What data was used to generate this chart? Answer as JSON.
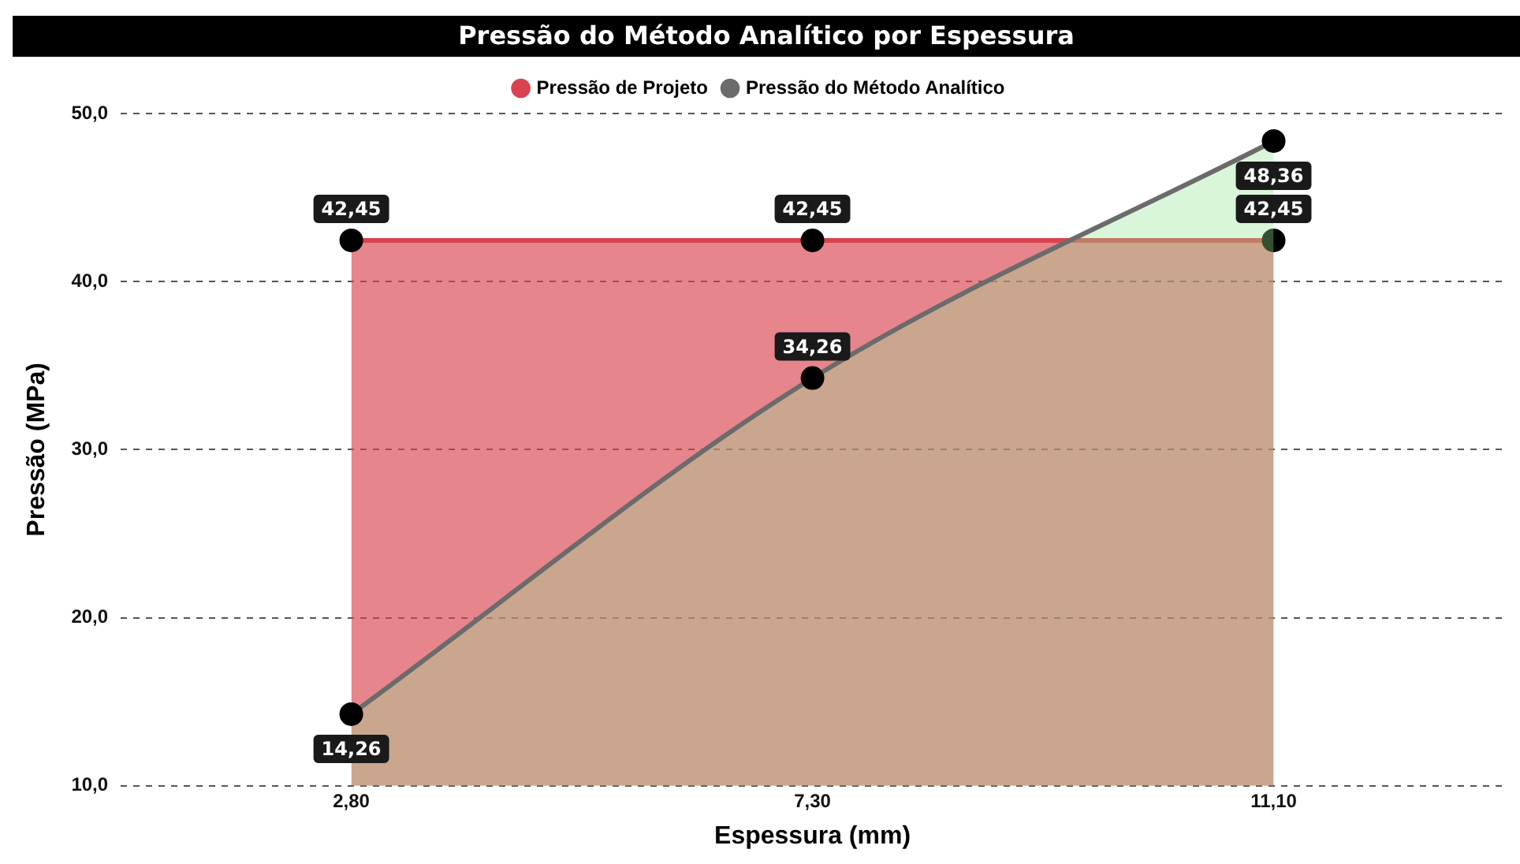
{
  "chart_data": {
    "type": "area",
    "title": "Pressão do Método Analítico por Espessura",
    "xlabel": "Espessura (mm)",
    "ylabel": "Pressão (MPa)",
    "categories": [
      "2,80",
      "7,30",
      "11,10"
    ],
    "series": [
      {
        "name": "Pressão de Projeto",
        "color": "#d9434f",
        "values": [
          42.45,
          42.45,
          42.45
        ],
        "value_labels": [
          "42,45",
          "42,45",
          "42,45"
        ]
      },
      {
        "name": "Pressão do Método Analítico",
        "color": "#6b6b6b",
        "values": [
          14.26,
          34.26,
          48.36
        ],
        "value_labels": [
          "14,26",
          "34,26",
          "48,36"
        ]
      }
    ],
    "ylim": [
      10,
      50
    ],
    "yticks": [
      {
        "value": 10,
        "label": "10,0"
      },
      {
        "value": 20,
        "label": "20,0"
      },
      {
        "value": 30,
        "label": "30,0"
      },
      {
        "value": 40,
        "label": "40,0"
      },
      {
        "value": 50,
        "label": "50,0"
      }
    ],
    "grid": "y",
    "legend": "top",
    "marker": "circle",
    "line_style": "solid"
  }
}
